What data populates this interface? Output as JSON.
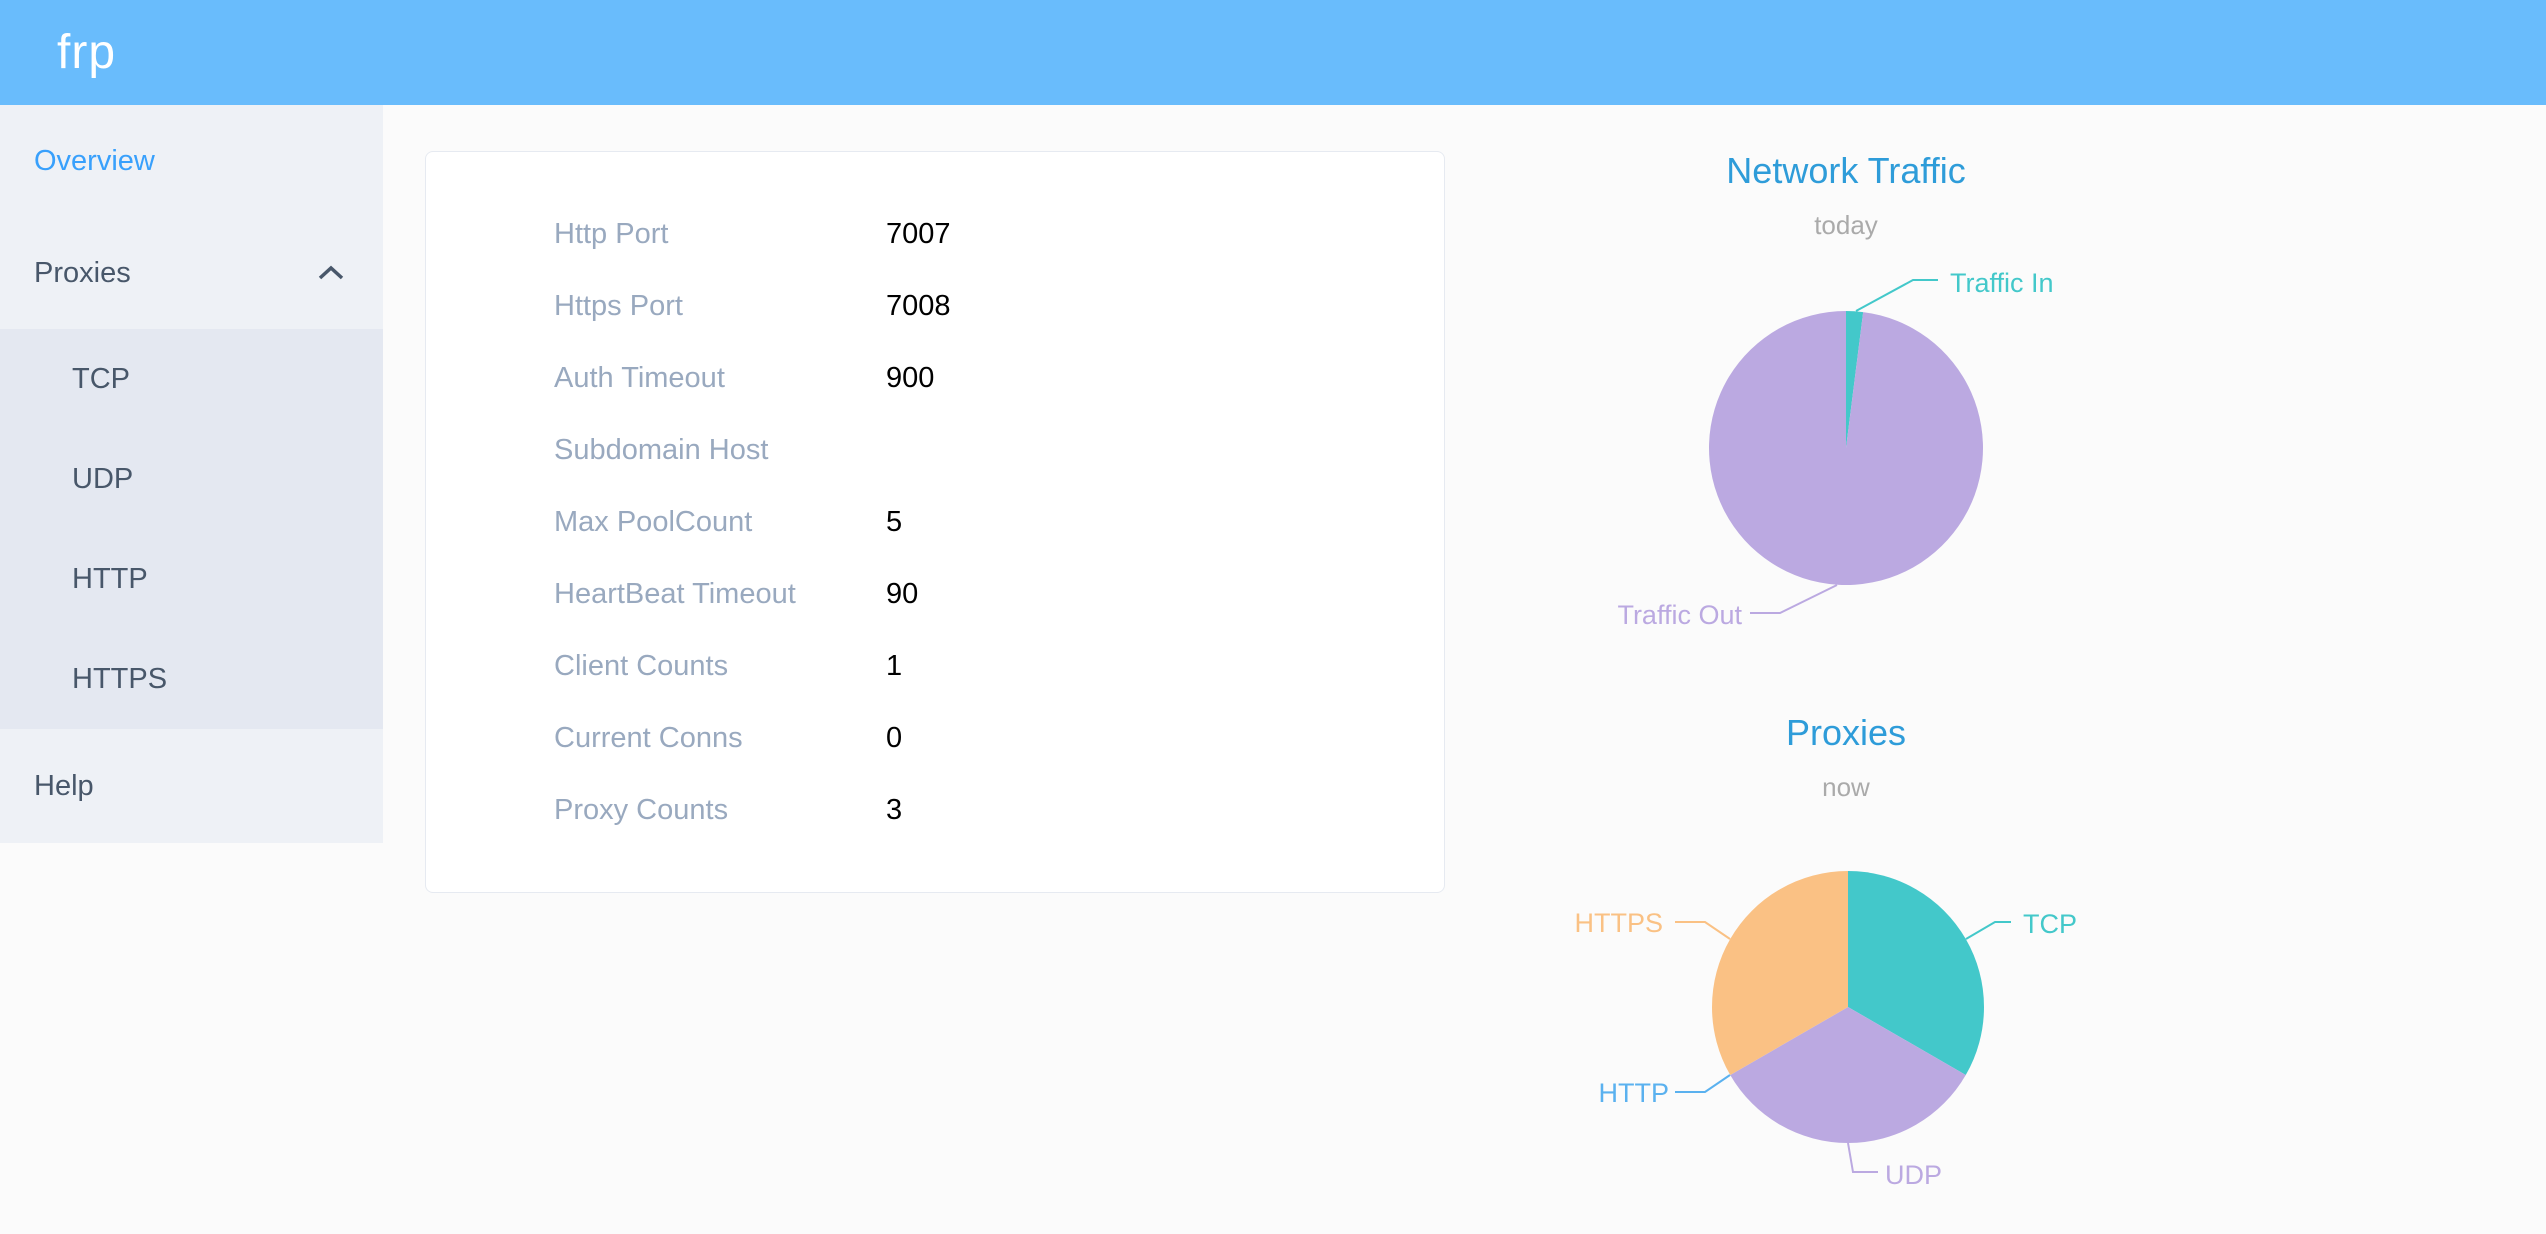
{
  "app": {
    "logo": "frp"
  },
  "theme": {
    "header_bg": "#69bcfc",
    "sidebar_bg": "#eef1f6",
    "submenu_bg": "#e4e8f1",
    "menu_text": "#48576a",
    "active_link": "#38a0fc",
    "chart_title_color": "#2e9cd9",
    "chart_subtitle_color": "#aaaaaa",
    "card_label_color": "#99a9bf",
    "card_value_color": "#000000"
  },
  "sidebar": {
    "items": [
      {
        "label": "Overview",
        "active": true
      },
      {
        "label": "Proxies",
        "expanded": true
      },
      {
        "label": "TCP"
      },
      {
        "label": "UDP"
      },
      {
        "label": "HTTP"
      },
      {
        "label": "HTTPS"
      },
      {
        "label": "Help"
      }
    ]
  },
  "config": {
    "rows": [
      {
        "label": "Http Port",
        "value": "7007"
      },
      {
        "label": "Https Port",
        "value": "7008"
      },
      {
        "label": "Auth Timeout",
        "value": "900"
      },
      {
        "label": "Subdomain Host",
        "value": ""
      },
      {
        "label": "Max PoolCount",
        "value": "5"
      },
      {
        "label": "HeartBeat Timeout",
        "value": "90"
      },
      {
        "label": "Client Counts",
        "value": "1"
      },
      {
        "label": "Current Conns",
        "value": "0"
      },
      {
        "label": "Proxy Counts",
        "value": "3"
      }
    ]
  },
  "chart_data": [
    {
      "type": "pie",
      "title": "Network Traffic",
      "subtitle": "today",
      "legend_position": "callout-labels",
      "values_estimated": true,
      "series": [
        {
          "name": "Traffic In",
          "value": 2,
          "color": "#43c8ca"
        },
        {
          "name": "Traffic Out",
          "value": 98,
          "color": "#bba9e1"
        }
      ]
    },
    {
      "type": "pie",
      "title": "Proxies",
      "subtitle": "now",
      "legend_position": "callout-labels",
      "series": [
        {
          "name": "TCP",
          "value": 1,
          "color": "#43c8ca"
        },
        {
          "name": "UDP",
          "value": 1,
          "color": "#bba9e1"
        },
        {
          "name": "HTTP",
          "value": 0,
          "color": "#5ab1ef"
        },
        {
          "name": "HTTPS",
          "value": 1,
          "color": "#fac184"
        }
      ]
    }
  ]
}
